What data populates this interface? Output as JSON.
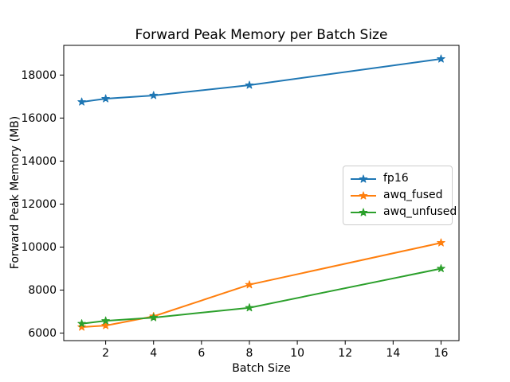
{
  "chart_data": {
    "type": "line",
    "title": "Forward Peak Memory per Batch Size",
    "xlabel": "Batch Size",
    "ylabel": "Forward Peak Memory (MB)",
    "x": [
      1,
      2,
      4,
      8,
      16
    ],
    "series": [
      {
        "name": "fp16",
        "color": "#1f77b4",
        "marker": "star",
        "values": [
          16750,
          16900,
          17050,
          17530,
          18750
        ]
      },
      {
        "name": "awq_fused",
        "color": "#ff7f0e",
        "marker": "star",
        "values": [
          6280,
          6350,
          6780,
          8250,
          10200
        ]
      },
      {
        "name": "awq_unfused",
        "color": "#2ca02c",
        "marker": "star",
        "values": [
          6440,
          6570,
          6720,
          7180,
          9000
        ]
      }
    ],
    "xlim": [
      0.25,
      16.75
    ],
    "ylim": [
      5650,
      19380
    ],
    "xticks": [
      2,
      4,
      6,
      8,
      10,
      12,
      14,
      16
    ],
    "yticks": [
      6000,
      8000,
      10000,
      12000,
      14000,
      16000,
      18000
    ],
    "grid": false,
    "legend_position": "center right",
    "axis_color": "#000000",
    "background_color": "#ffffff"
  }
}
